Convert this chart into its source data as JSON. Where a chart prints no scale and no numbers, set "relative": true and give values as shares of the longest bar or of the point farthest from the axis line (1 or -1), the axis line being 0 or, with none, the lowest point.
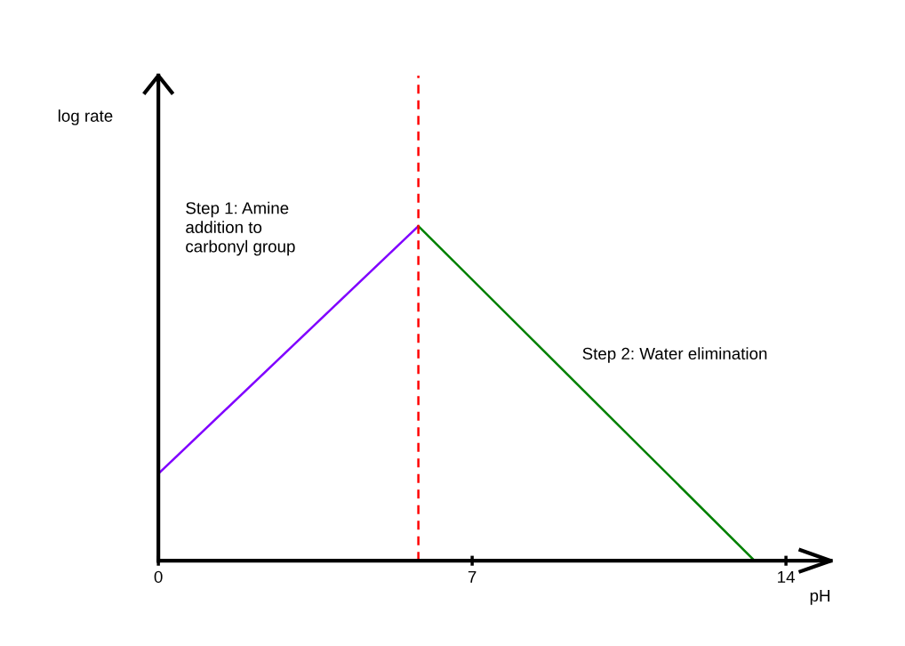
{
  "chart_data": {
    "type": "line",
    "relative": true,
    "xlabel": "pH",
    "xlim": [
      0,
      15
    ],
    "xticks": [
      0,
      7,
      14
    ],
    "grid": false,
    "marker": "none",
    "line_style": "solid",
    "series": [
      {
        "color": "#8000ff",
        "x": [
          0,
          5.8
        ],
        "values": [
          0.26,
          1
        ]
      },
      {
        "color": "#008000",
        "x": [
          5.8,
          13.3
        ],
        "values": [
          1,
          0
        ]
      }
    ],
    "ref_lines": [
      {
        "axis": "x",
        "value": 5.8,
        "color": "#ff0000",
        "line_style": "dashed"
      }
    ],
    "annotations": [
      "log rate",
      "Step 1: Amine\naddition to\ncarbonyl group",
      "Step 2: Water elimination"
    ]
  }
}
